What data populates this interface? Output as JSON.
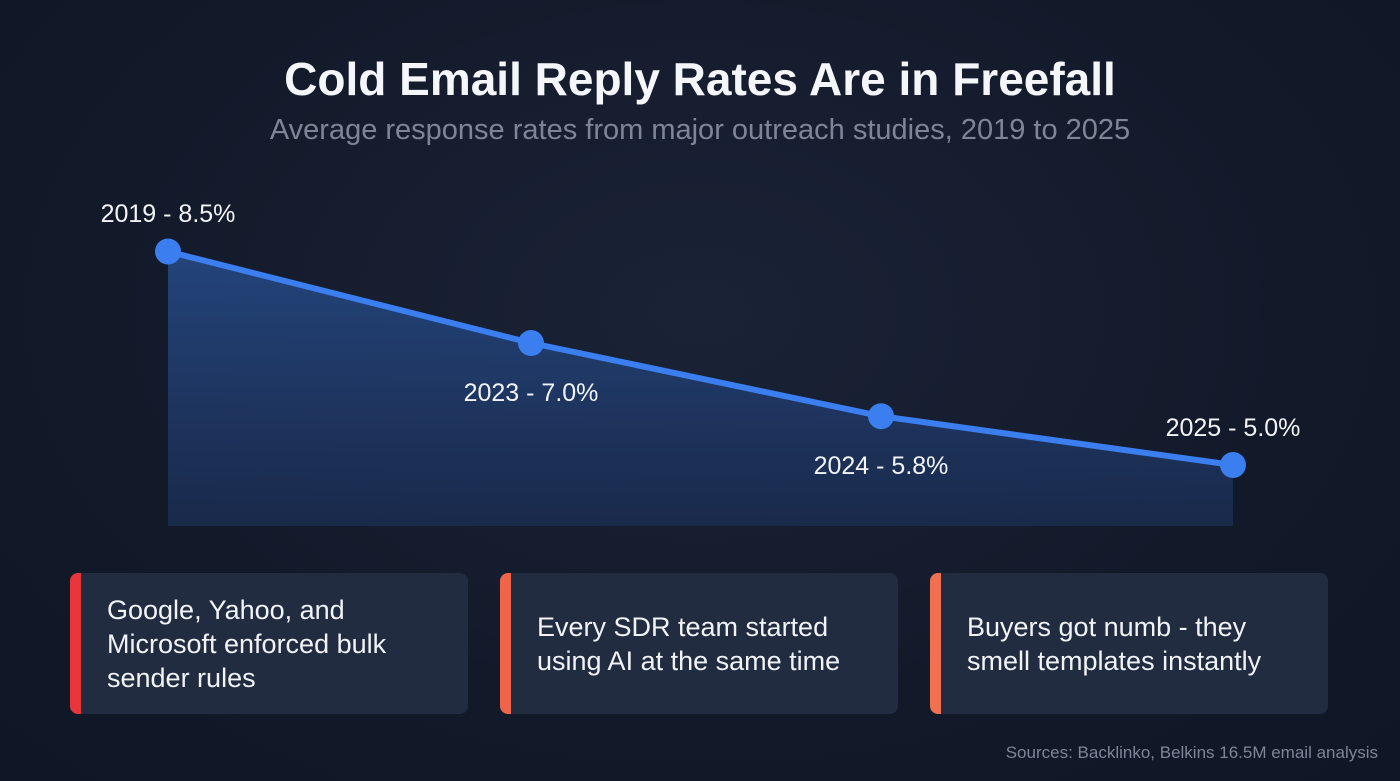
{
  "title": "Cold Email Reply Rates Are in Freefall",
  "subtitle": "Average response rates from major outreach studies, 2019 to 2025",
  "chart_data": {
    "type": "area",
    "categories": [
      "2019",
      "2023",
      "2024",
      "2025"
    ],
    "values": [
      8.5,
      7.0,
      5.8,
      5.0
    ],
    "data_labels": [
      "2019 - 8.5%",
      "2023 - 7.0%",
      "2024 - 5.8%",
      "2025 - 5.0%"
    ],
    "ylim": [
      4,
      9
    ],
    "grid": false,
    "line_color": "#3b7ef0",
    "fill_color": "#1f3a6e"
  },
  "cards": [
    {
      "text": "Google, Yahoo, and Microsoft enforced bulk sender rules",
      "accent": "#e8363a"
    },
    {
      "text": "Every SDR team started using AI at the same time",
      "accent": "#f0654a"
    },
    {
      "text": "Buyers got numb - they smell templates instantly",
      "accent": "#f0704f"
    }
  ],
  "source": "Sources: Backlinko, Belkins 16.5M email analysis"
}
